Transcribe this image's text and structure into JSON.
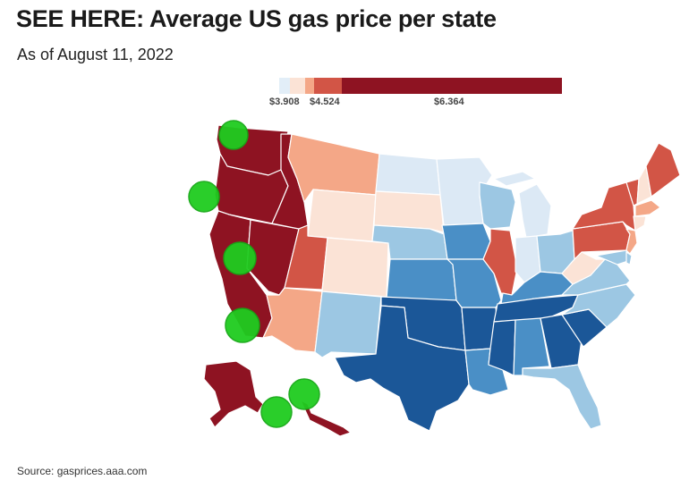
{
  "header": {
    "title": "SEE HERE: Average US gas price per state",
    "subtitle": "As of August 11, 2022"
  },
  "legend": {
    "labels": [
      "$3.908",
      "$4.524",
      "$6.364"
    ],
    "colors": [
      "#e2eef8",
      "#fbe3d6",
      "#f4a787",
      "#d25546",
      "#8e1322"
    ]
  },
  "source": "Source: gasprices.aaa.com",
  "palette": {
    "c1": "#1b5798",
    "c2": "#4a8fc6",
    "c3": "#9cc7e3",
    "c4": "#dce9f5",
    "c5": "#fbe3d6",
    "c6": "#f4a787",
    "c7": "#d25546",
    "c8": "#8e1322"
  },
  "map": {
    "states": [
      {
        "name": "washington",
        "color": "c8"
      },
      {
        "name": "oregon",
        "color": "c8"
      },
      {
        "name": "california",
        "color": "c8"
      },
      {
        "name": "nevada",
        "color": "c8"
      },
      {
        "name": "idaho",
        "color": "c8"
      },
      {
        "name": "montana",
        "color": "c6"
      },
      {
        "name": "wyoming",
        "color": "c5"
      },
      {
        "name": "utah",
        "color": "c7"
      },
      {
        "name": "colorado",
        "color": "c5"
      },
      {
        "name": "arizona",
        "color": "c6"
      },
      {
        "name": "new-mexico",
        "color": "c3"
      },
      {
        "name": "north-dakota",
        "color": "c4"
      },
      {
        "name": "south-dakota",
        "color": "c5"
      },
      {
        "name": "nebraska",
        "color": "c3"
      },
      {
        "name": "kansas",
        "color": "c2"
      },
      {
        "name": "oklahoma",
        "color": "c1"
      },
      {
        "name": "texas",
        "color": "c1"
      },
      {
        "name": "minnesota",
        "color": "c4"
      },
      {
        "name": "iowa",
        "color": "c2"
      },
      {
        "name": "missouri",
        "color": "c2"
      },
      {
        "name": "arkansas",
        "color": "c1"
      },
      {
        "name": "louisiana",
        "color": "c2"
      },
      {
        "name": "wisconsin",
        "color": "c3"
      },
      {
        "name": "illinois",
        "color": "c7"
      },
      {
        "name": "michigan",
        "color": "c4"
      },
      {
        "name": "indiana",
        "color": "c4"
      },
      {
        "name": "ohio",
        "color": "c3"
      },
      {
        "name": "kentucky",
        "color": "c2"
      },
      {
        "name": "tennessee",
        "color": "c1"
      },
      {
        "name": "mississippi",
        "color": "c1"
      },
      {
        "name": "alabama",
        "color": "c2"
      },
      {
        "name": "georgia",
        "color": "c1"
      },
      {
        "name": "florida",
        "color": "c3"
      },
      {
        "name": "south-carolina",
        "color": "c1"
      },
      {
        "name": "north-carolina",
        "color": "c3"
      },
      {
        "name": "virginia",
        "color": "c3"
      },
      {
        "name": "west-virginia",
        "color": "c5"
      },
      {
        "name": "pennsylvania",
        "color": "c7"
      },
      {
        "name": "new-york",
        "color": "c7"
      },
      {
        "name": "vermont",
        "color": "c7"
      },
      {
        "name": "new-hampshire",
        "color": "c5"
      },
      {
        "name": "maine",
        "color": "c7"
      },
      {
        "name": "massachusetts",
        "color": "c6"
      },
      {
        "name": "connecticut",
        "color": "c5"
      },
      {
        "name": "new-jersey",
        "color": "c6"
      },
      {
        "name": "maryland",
        "color": "c3"
      },
      {
        "name": "delaware",
        "color": "c3"
      },
      {
        "name": "alaska",
        "color": "c8"
      },
      {
        "name": "hawaii",
        "color": "c8"
      }
    ]
  }
}
